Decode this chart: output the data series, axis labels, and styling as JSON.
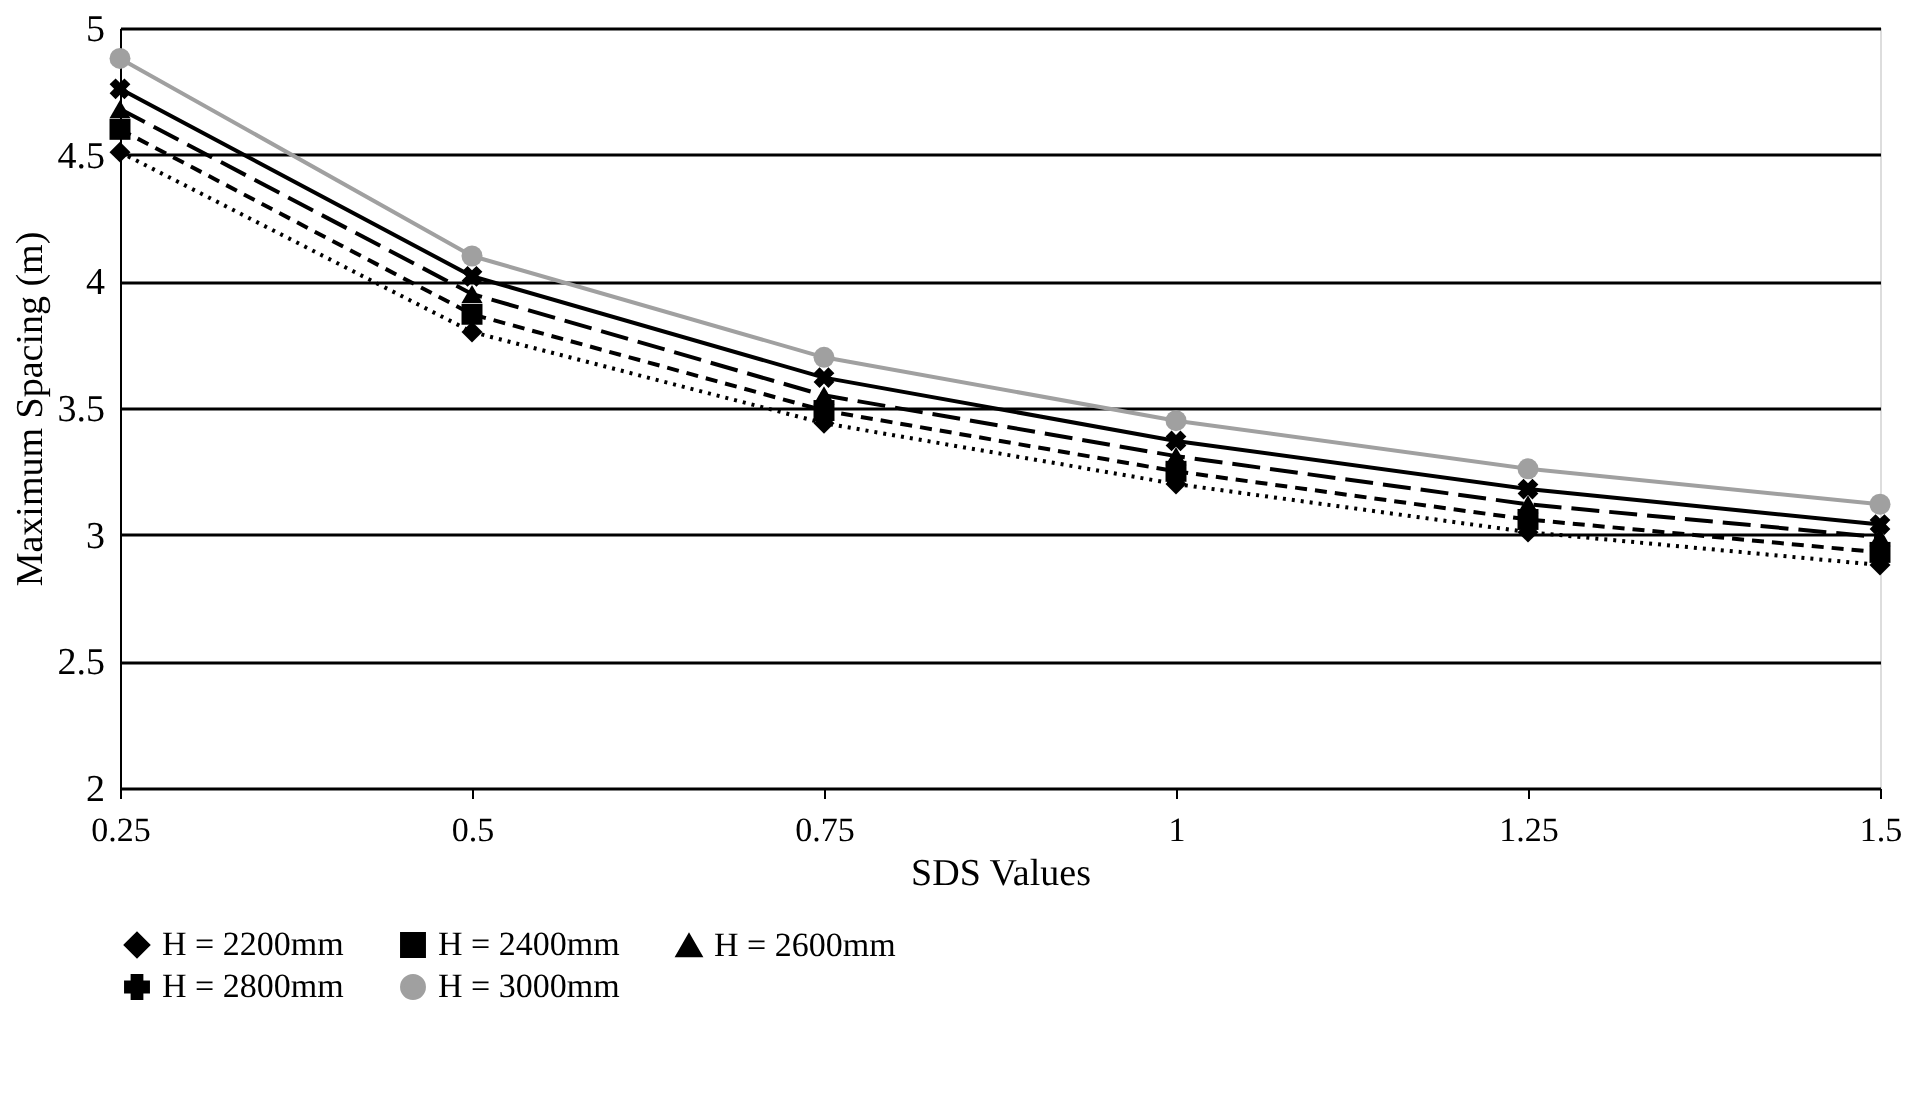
{
  "chart_data": {
    "type": "line",
    "xlabel": "SDS Values",
    "ylabel": "Maximum  Spacing (m)",
    "x": [
      0.25,
      0.5,
      0.75,
      1,
      1.25,
      1.5
    ],
    "xlim": [
      0.25,
      1.5
    ],
    "xticks": [
      0.25,
      0.5,
      0.75,
      1,
      1.25,
      1.5
    ],
    "ylim": [
      2,
      5
    ],
    "yticks": [
      2,
      2.5,
      3,
      3.5,
      4,
      4.5,
      5
    ],
    "grid": "y",
    "legend": "bottom",
    "series": [
      {
        "name": "H = 2200mm",
        "color": "#000000",
        "line_style": "dotted",
        "marker": "diamond",
        "values": [
          4.51,
          3.8,
          3.44,
          3.2,
          3.01,
          2.88
        ]
      },
      {
        "name": "H = 2400mm",
        "color": "#000000",
        "line_style": "dashed",
        "marker": "square",
        "values": [
          4.6,
          3.87,
          3.49,
          3.25,
          3.06,
          2.93
        ]
      },
      {
        "name": "H = 2600mm",
        "color": "#000000",
        "line_style": "longdash",
        "marker": "triangle",
        "values": [
          4.68,
          3.95,
          3.55,
          3.31,
          3.12,
          2.99
        ]
      },
      {
        "name": "H = 2800mm",
        "color": "#000000",
        "line_style": "solid",
        "marker": "cross",
        "values": [
          4.76,
          4.02,
          3.62,
          3.37,
          3.18,
          3.04
        ]
      },
      {
        "name": "H = 3000mm",
        "color": "#a0a0a0",
        "line_style": "solid",
        "marker": "circle",
        "values": [
          4.88,
          4.1,
          3.7,
          3.45,
          3.26,
          3.12
        ]
      }
    ]
  }
}
